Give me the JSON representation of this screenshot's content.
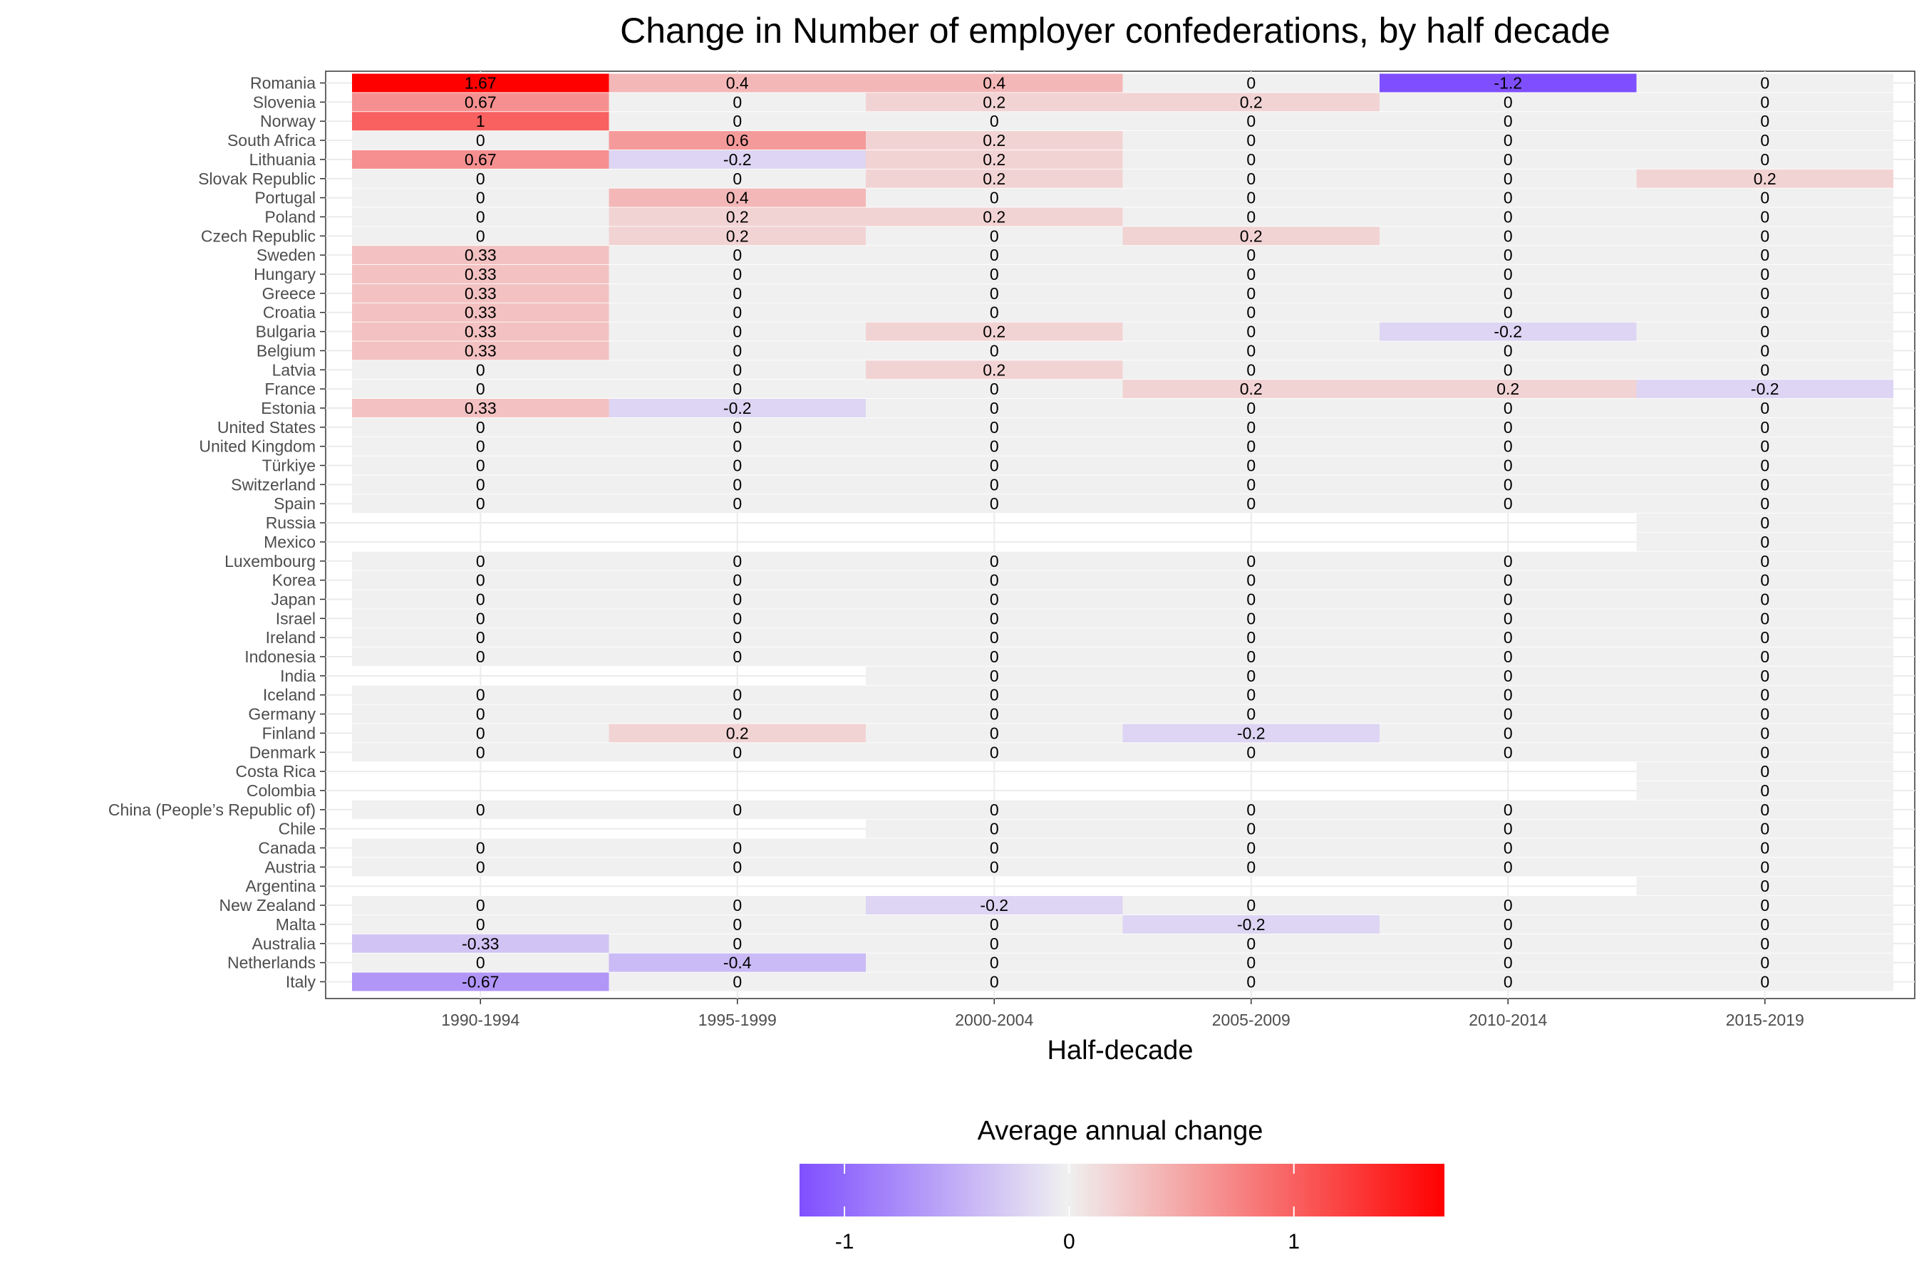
{
  "chart_data": {
    "type": "heatmap",
    "title": "Change in Number of employer confederations, by half decade",
    "xlabel": "Half-decade",
    "ylabel": "",
    "legend_title": "Average annual change",
    "legend_position": "bottom",
    "legend_ticks": [
      "-1",
      "0",
      "1"
    ],
    "color_scale": {
      "low": "#7f4fff",
      "mid": "#f0f0f0",
      "high": "#ff0000",
      "min": -1.2,
      "max": 1.67
    },
    "grid": true,
    "x_categories": [
      "1990-1994",
      "1995-1999",
      "2000-2004",
      "2005-2009",
      "2010-2014",
      "2015-2019"
    ],
    "rows": [
      {
        "country": "Romania",
        "values": [
          "1.67",
          "0.4",
          "0.4",
          "0",
          "-1.2",
          "0"
        ]
      },
      {
        "country": "Slovenia",
        "values": [
          "0.67",
          "0",
          "0.2",
          "0.2",
          "0",
          "0"
        ]
      },
      {
        "country": "Norway",
        "values": [
          "1",
          "0",
          "0",
          "0",
          "0",
          "0"
        ]
      },
      {
        "country": "South Africa",
        "values": [
          "0",
          "0.6",
          "0.2",
          "0",
          "0",
          "0"
        ]
      },
      {
        "country": "Lithuania",
        "values": [
          "0.67",
          "-0.2",
          "0.2",
          "0",
          "0",
          "0"
        ]
      },
      {
        "country": "Slovak Republic",
        "values": [
          "0",
          "0",
          "0.2",
          "0",
          "0",
          "0.2"
        ]
      },
      {
        "country": "Portugal",
        "values": [
          "0",
          "0.4",
          "0",
          "0",
          "0",
          "0"
        ]
      },
      {
        "country": "Poland",
        "values": [
          "0",
          "0.2",
          "0.2",
          "0",
          "0",
          "0"
        ]
      },
      {
        "country": "Czech Republic",
        "values": [
          "0",
          "0.2",
          "0",
          "0.2",
          "0",
          "0"
        ]
      },
      {
        "country": "Sweden",
        "values": [
          "0.33",
          "0",
          "0",
          "0",
          "0",
          "0"
        ]
      },
      {
        "country": "Hungary",
        "values": [
          "0.33",
          "0",
          "0",
          "0",
          "0",
          "0"
        ]
      },
      {
        "country": "Greece",
        "values": [
          "0.33",
          "0",
          "0",
          "0",
          "0",
          "0"
        ]
      },
      {
        "country": "Croatia",
        "values": [
          "0.33",
          "0",
          "0",
          "0",
          "0",
          "0"
        ]
      },
      {
        "country": "Bulgaria",
        "values": [
          "0.33",
          "0",
          "0.2",
          "0",
          "-0.2",
          "0"
        ]
      },
      {
        "country": "Belgium",
        "values": [
          "0.33",
          "0",
          "0",
          "0",
          "0",
          "0"
        ]
      },
      {
        "country": "Latvia",
        "values": [
          "0",
          "0",
          "0.2",
          "0",
          "0",
          "0"
        ]
      },
      {
        "country": "France",
        "values": [
          "0",
          "0",
          "0",
          "0.2",
          "0.2",
          "-0.2"
        ]
      },
      {
        "country": "Estonia",
        "values": [
          "0.33",
          "-0.2",
          "0",
          "0",
          "0",
          "0"
        ]
      },
      {
        "country": "United States",
        "values": [
          "0",
          "0",
          "0",
          "0",
          "0",
          "0"
        ]
      },
      {
        "country": "United Kingdom",
        "values": [
          "0",
          "0",
          "0",
          "0",
          "0",
          "0"
        ]
      },
      {
        "country": "Türkiye",
        "values": [
          "0",
          "0",
          "0",
          "0",
          "0",
          "0"
        ]
      },
      {
        "country": "Switzerland",
        "values": [
          "0",
          "0",
          "0",
          "0",
          "0",
          "0"
        ]
      },
      {
        "country": "Spain",
        "values": [
          "0",
          "0",
          "0",
          "0",
          "0",
          "0"
        ]
      },
      {
        "country": "Russia",
        "values": [
          null,
          null,
          null,
          null,
          null,
          "0"
        ]
      },
      {
        "country": "Mexico",
        "values": [
          null,
          null,
          null,
          null,
          null,
          "0"
        ]
      },
      {
        "country": "Luxembourg",
        "values": [
          "0",
          "0",
          "0",
          "0",
          "0",
          "0"
        ]
      },
      {
        "country": "Korea",
        "values": [
          "0",
          "0",
          "0",
          "0",
          "0",
          "0"
        ]
      },
      {
        "country": "Japan",
        "values": [
          "0",
          "0",
          "0",
          "0",
          "0",
          "0"
        ]
      },
      {
        "country": "Israel",
        "values": [
          "0",
          "0",
          "0",
          "0",
          "0",
          "0"
        ]
      },
      {
        "country": "Ireland",
        "values": [
          "0",
          "0",
          "0",
          "0",
          "0",
          "0"
        ]
      },
      {
        "country": "Indonesia",
        "values": [
          "0",
          "0",
          "0",
          "0",
          "0",
          "0"
        ]
      },
      {
        "country": "India",
        "values": [
          null,
          null,
          "0",
          "0",
          "0",
          "0"
        ]
      },
      {
        "country": "Iceland",
        "values": [
          "0",
          "0",
          "0",
          "0",
          "0",
          "0"
        ]
      },
      {
        "country": "Germany",
        "values": [
          "0",
          "0",
          "0",
          "0",
          "0",
          "0"
        ]
      },
      {
        "country": "Finland",
        "values": [
          "0",
          "0.2",
          "0",
          "-0.2",
          "0",
          "0"
        ]
      },
      {
        "country": "Denmark",
        "values": [
          "0",
          "0",
          "0",
          "0",
          "0",
          "0"
        ]
      },
      {
        "country": "Costa Rica",
        "values": [
          null,
          null,
          null,
          null,
          null,
          "0"
        ]
      },
      {
        "country": "Colombia",
        "values": [
          null,
          null,
          null,
          null,
          null,
          "0"
        ]
      },
      {
        "country": "China (People’s Republic of)",
        "values": [
          "0",
          "0",
          "0",
          "0",
          "0",
          "0"
        ]
      },
      {
        "country": "Chile",
        "values": [
          null,
          null,
          "0",
          "0",
          "0",
          "0"
        ]
      },
      {
        "country": "Canada",
        "values": [
          "0",
          "0",
          "0",
          "0",
          "0",
          "0"
        ]
      },
      {
        "country": "Austria",
        "values": [
          "0",
          "0",
          "0",
          "0",
          "0",
          "0"
        ]
      },
      {
        "country": "Argentina",
        "values": [
          null,
          null,
          null,
          null,
          null,
          "0"
        ]
      },
      {
        "country": "New Zealand",
        "values": [
          "0",
          "0",
          "-0.2",
          "0",
          "0",
          "0"
        ]
      },
      {
        "country": "Malta",
        "values": [
          "0",
          "0",
          "0",
          "-0.2",
          "0",
          "0"
        ]
      },
      {
        "country": "Australia",
        "values": [
          "-0.33",
          "0",
          "0",
          "0",
          "0",
          "0"
        ]
      },
      {
        "country": "Netherlands",
        "values": [
          "0",
          "-0.4",
          "0",
          "0",
          "0",
          "0"
        ]
      },
      {
        "country": "Italy",
        "values": [
          "-0.67",
          "0",
          "0",
          "0",
          "0",
          "0"
        ]
      }
    ]
  }
}
